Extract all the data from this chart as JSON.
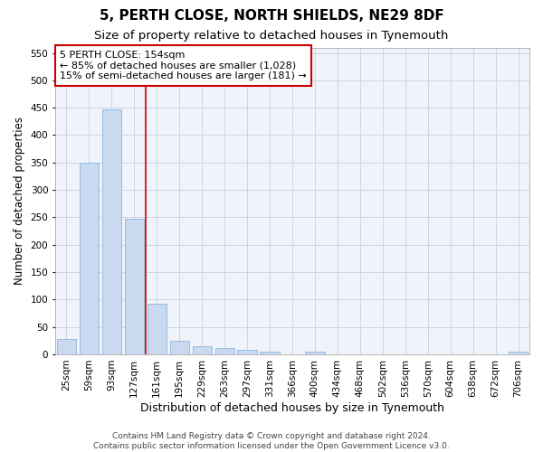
{
  "title1": "5, PERTH CLOSE, NORTH SHIELDS, NE29 8DF",
  "title2": "Size of property relative to detached houses in Tynemouth",
  "xlabel": "Distribution of detached houses by size in Tynemouth",
  "ylabel": "Number of detached properties",
  "categories": [
    "25sqm",
    "59sqm",
    "93sqm",
    "127sqm",
    "161sqm",
    "195sqm",
    "229sqm",
    "263sqm",
    "297sqm",
    "331sqm",
    "366sqm",
    "400sqm",
    "434sqm",
    "468sqm",
    "502sqm",
    "536sqm",
    "570sqm",
    "604sqm",
    "638sqm",
    "672sqm",
    "706sqm"
  ],
  "values": [
    28,
    350,
    447,
    248,
    93,
    25,
    15,
    11,
    8,
    5,
    0,
    5,
    0,
    0,
    0,
    0,
    0,
    0,
    0,
    0,
    5
  ],
  "bar_color": "#c8d9f0",
  "bar_edgecolor": "#7aaed6",
  "vline_x": 4,
  "vline_color": "#cc0000",
  "annotation_lines": [
    "5 PERTH CLOSE: 154sqm",
    "← 85% of detached houses are smaller (1,028)",
    "15% of semi-detached houses are larger (181) →"
  ],
  "annotation_box_color": "#ffffff",
  "annotation_box_edgecolor": "#cc0000",
  "ylim": [
    0,
    560
  ],
  "yticks": [
    0,
    50,
    100,
    150,
    200,
    250,
    300,
    350,
    400,
    450,
    500,
    550
  ],
  "footer1": "Contains HM Land Registry data © Crown copyright and database right 2024.",
  "footer2": "Contains public sector information licensed under the Open Government Licence v3.0.",
  "title1_fontsize": 11,
  "title2_fontsize": 9.5,
  "tick_fontsize": 7.5,
  "ylabel_fontsize": 8.5,
  "xlabel_fontsize": 9,
  "annotation_fontsize": 8,
  "footer_fontsize": 6.5
}
